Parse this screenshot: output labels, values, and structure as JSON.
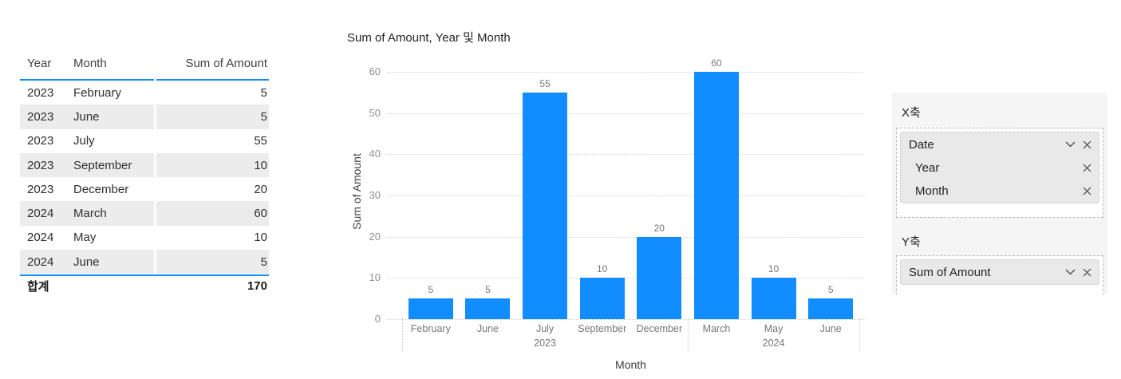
{
  "colors": {
    "accent": "#118DFF",
    "stripe": "#ececec",
    "panel_bg": "#f5f5f5",
    "grid": "#d2d2d2"
  },
  "table": {
    "headers": [
      "Year",
      "Month",
      "Sum of Amount"
    ],
    "rows": [
      [
        "2023",
        "February",
        "5"
      ],
      [
        "2023",
        "June",
        "5"
      ],
      [
        "2023",
        "July",
        "55"
      ],
      [
        "2023",
        "September",
        "10"
      ],
      [
        "2023",
        "December",
        "20"
      ],
      [
        "2024",
        "March",
        "60"
      ],
      [
        "2024",
        "May",
        "10"
      ],
      [
        "2024",
        "June",
        "5"
      ]
    ],
    "total_label": "합계",
    "total_value": "170"
  },
  "chart_data": {
    "type": "bar",
    "title": "Sum of Amount, Year 및 Month",
    "xlabel": "Month",
    "ylabel": "Sum of Amount",
    "ylim": [
      0,
      60
    ],
    "yticks": [
      0,
      10,
      20,
      30,
      40,
      50,
      60
    ],
    "grid": "dotted horizontal",
    "legend": "none",
    "bar_color": "#118DFF",
    "categories": [
      "February",
      "June",
      "July",
      "September",
      "December",
      "March",
      "May",
      "June"
    ],
    "values": [
      5,
      5,
      55,
      10,
      20,
      60,
      10,
      5
    ],
    "data_labels": [
      "5",
      "5",
      "55",
      "10",
      "20",
      "60",
      "10",
      "5"
    ],
    "groups": [
      {
        "year": "2023",
        "span": [
          0,
          4
        ]
      },
      {
        "year": "2024",
        "span": [
          5,
          7
        ]
      }
    ]
  },
  "fields_panel": {
    "x_axis_label": "X축",
    "y_axis_label": "Y축",
    "x_well": {
      "parent": "Date",
      "children": [
        "Year",
        "Month"
      ]
    },
    "y_well": {
      "field": "Sum of Amount"
    }
  }
}
